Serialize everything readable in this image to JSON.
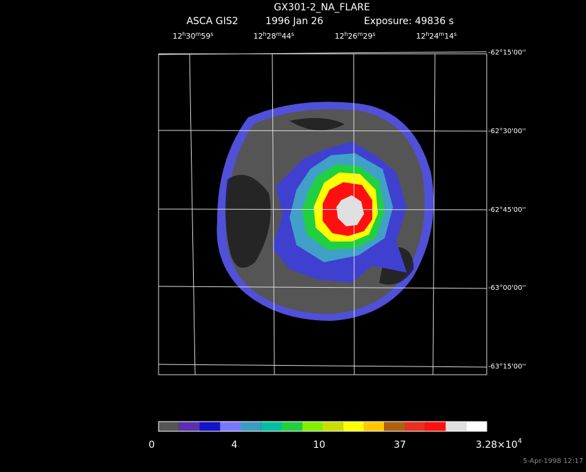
{
  "header": {
    "object": "GX301-2_NA_FLARE",
    "instrument": "ASCA GIS2",
    "date": "1996 Jan 26",
    "exposure": "Exposure: 49836 s"
  },
  "ra_labels": [
    [
      "12",
      "h",
      "30",
      "m",
      "59",
      "s"
    ],
    [
      "12",
      "h",
      "28",
      "m",
      "44",
      "s"
    ],
    [
      "12",
      "h",
      "26",
      "m",
      "29",
      "s"
    ],
    [
      "12",
      "h",
      "24",
      "m",
      "14",
      "s"
    ]
  ],
  "dec_labels": [
    "-62°15'00''",
    "-62°30'00''",
    "-62°45'00''",
    "-63°00'00''",
    "-63°15'00''"
  ],
  "colorbar": {
    "colors": [
      "#555555",
      "#5a30b0",
      "#1414c8",
      "#7878ff",
      "#3c9cc0",
      "#00c0a0",
      "#20d040",
      "#80f000",
      "#c8e000",
      "#ffff00",
      "#ffc800",
      "#b06010",
      "#e83020",
      "#ff1010",
      "#e0e0e0",
      "#ffffff"
    ],
    "labels": [
      "0",
      "4",
      "10",
      "37"
    ],
    "max_label": {
      "mantissa": "3.28×10",
      "exponent": "4"
    }
  },
  "footer": "5-Apr-1998 12:17"
}
